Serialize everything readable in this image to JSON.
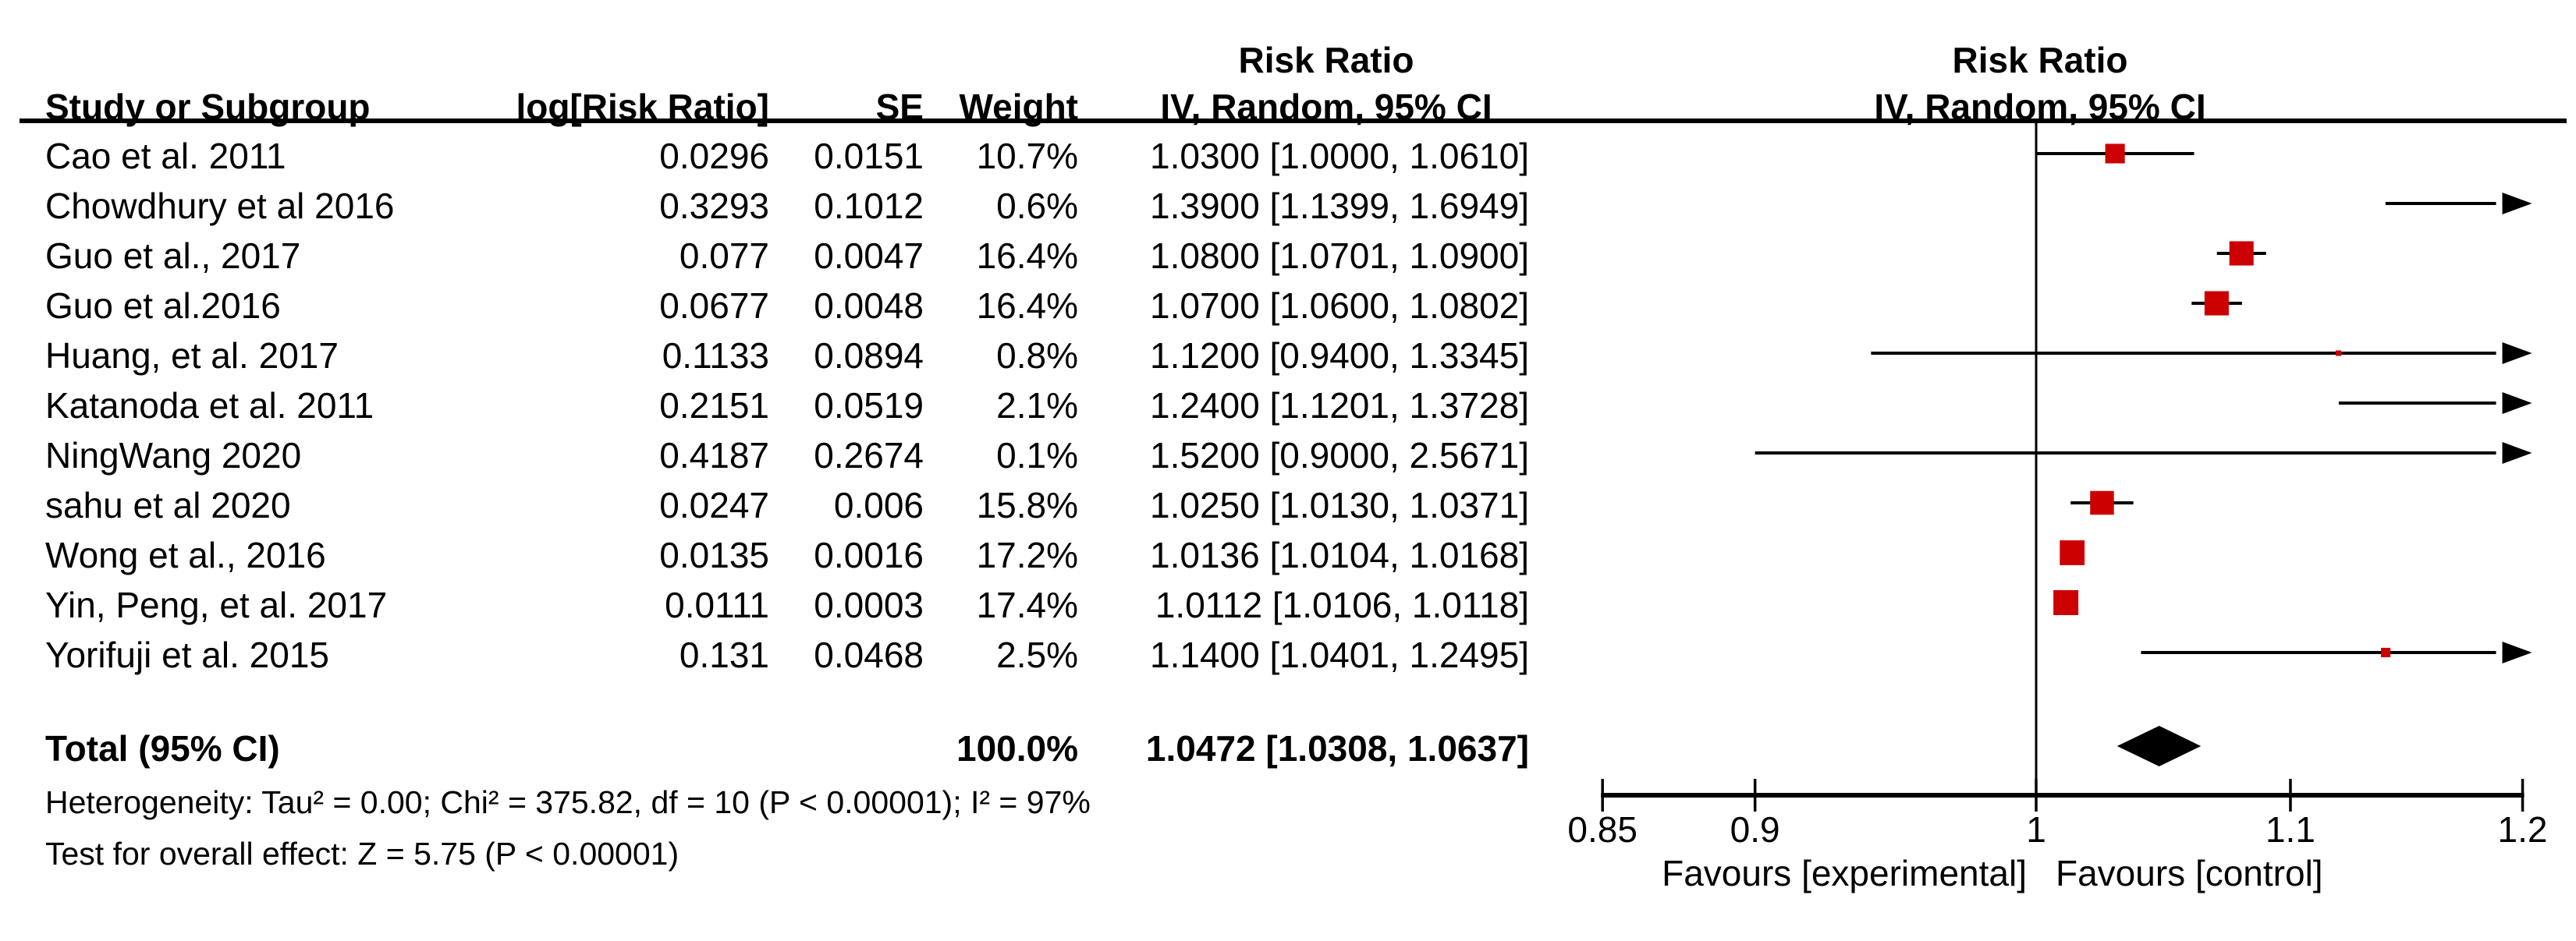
{
  "table": {
    "headers": {
      "study": "Study or Subgroup",
      "log_rr": "log[Risk Ratio]",
      "se": "SE",
      "weight": "Weight",
      "rr_line1": "Risk Ratio",
      "rr_line2": "IV, Random, 95% CI"
    },
    "total_label": "Total (95% CI)",
    "total_weight": "100.0%",
    "total_ci": "1.0472 [1.0308, 1.0637]"
  },
  "plot": {
    "header_line1": "Risk Ratio",
    "header_line2": "IV, Random, 95% CI",
    "favours_left": "Favours [experimental]",
    "favours_right": "Favours [control]"
  },
  "footnotes": {
    "heterogeneity": "Heterogeneity: Tau² = 0.00; Chi² = 375.82, df = 10 (P < 0.00001); I² = 97%",
    "overall_effect": "Test for overall effect: Z = 5.75 (P < 0.00001)"
  },
  "colors": {
    "marker": "#CC0000",
    "line": "#000000",
    "text": "#000000",
    "background": "#FFFFFF"
  },
  "chart_data": {
    "type": "scatter",
    "subtype": "forest-plot",
    "effect_measure": "Risk Ratio",
    "model": "IV, Random, 95% CI",
    "x_scale": "log",
    "xlim": [
      0.85,
      1.2
    ],
    "xticks": [
      "0.85",
      "0.9",
      "1",
      "1.1",
      "1.2"
    ],
    "no_effect_x": 1,
    "studies": [
      {
        "name": "Cao et al. 2011",
        "log_rr": "0.0296",
        "se": "0.0151",
        "weight_label": "10.7%",
        "ci_label": "1.0300 [1.0000, 1.0610]",
        "rr": 1.03,
        "lo": 1.0,
        "hi": 1.061,
        "weight": 10.7
      },
      {
        "name": "Chowdhury et al 2016",
        "log_rr": "0.3293",
        "se": "0.1012",
        "weight_label": "0.6%",
        "ci_label": "1.3900 [1.1399, 1.6949]",
        "rr": 1.39,
        "lo": 1.1399,
        "hi": 1.6949,
        "weight": 0.6
      },
      {
        "name": "Guo et al., 2017",
        "log_rr": "0.077",
        "se": "0.0047",
        "weight_label": "16.4%",
        "ci_label": "1.0800 [1.0701, 1.0900]",
        "rr": 1.08,
        "lo": 1.0701,
        "hi": 1.09,
        "weight": 16.4
      },
      {
        "name": "Guo et al.2016",
        "log_rr": "0.0677",
        "se": "0.0048",
        "weight_label": "16.4%",
        "ci_label": "1.0700 [1.0600, 1.0802]",
        "rr": 1.07,
        "lo": 1.06,
        "hi": 1.0802,
        "weight": 16.4
      },
      {
        "name": "Huang, et al. 2017",
        "log_rr": "0.1133",
        "se": "0.0894",
        "weight_label": "0.8%",
        "ci_label": "1.1200 [0.9400, 1.3345]",
        "rr": 1.12,
        "lo": 0.94,
        "hi": 1.3345,
        "weight": 0.8
      },
      {
        "name": "Katanoda et al. 2011",
        "log_rr": "0.2151",
        "se": "0.0519",
        "weight_label": "2.1%",
        "ci_label": "1.2400 [1.1201, 1.3728]",
        "rr": 1.24,
        "lo": 1.1201,
        "hi": 1.3728,
        "weight": 2.1
      },
      {
        "name": "NingWang 2020",
        "log_rr": "0.4187",
        "se": "0.2674",
        "weight_label": "0.1%",
        "ci_label": "1.5200 [0.9000, 2.5671]",
        "rr": 1.52,
        "lo": 0.9,
        "hi": 2.5671,
        "weight": 0.1
      },
      {
        "name": "sahu et al 2020",
        "log_rr": "0.0247",
        "se": "0.006",
        "weight_label": "15.8%",
        "ci_label": "1.0250 [1.0130, 1.0371]",
        "rr": 1.025,
        "lo": 1.013,
        "hi": 1.0371,
        "weight": 15.8
      },
      {
        "name": "Wong et al., 2016",
        "log_rr": "0.0135",
        "se": "0.0016",
        "weight_label": "17.2%",
        "ci_label": "1.0136 [1.0104, 1.0168]",
        "rr": 1.0136,
        "lo": 1.0104,
        "hi": 1.0168,
        "weight": 17.2
      },
      {
        "name": "Yin, Peng, et al. 2017",
        "log_rr": "0.0111",
        "se": "0.0003",
        "weight_label": "17.4%",
        "ci_label": "1.0112 [1.0106, 1.0118]",
        "rr": 1.0112,
        "lo": 1.0106,
        "hi": 1.0118,
        "weight": 17.4
      },
      {
        "name": "Yorifuji et al. 2015",
        "log_rr": "0.131",
        "se": "0.0468",
        "weight_label": "2.5%",
        "ci_label": "1.1400 [1.0401, 1.2495]",
        "rr": 1.14,
        "lo": 1.0401,
        "hi": 1.2495,
        "weight": 2.5
      }
    ],
    "total": {
      "rr": 1.0472,
      "lo": 1.0308,
      "hi": 1.0637
    }
  }
}
